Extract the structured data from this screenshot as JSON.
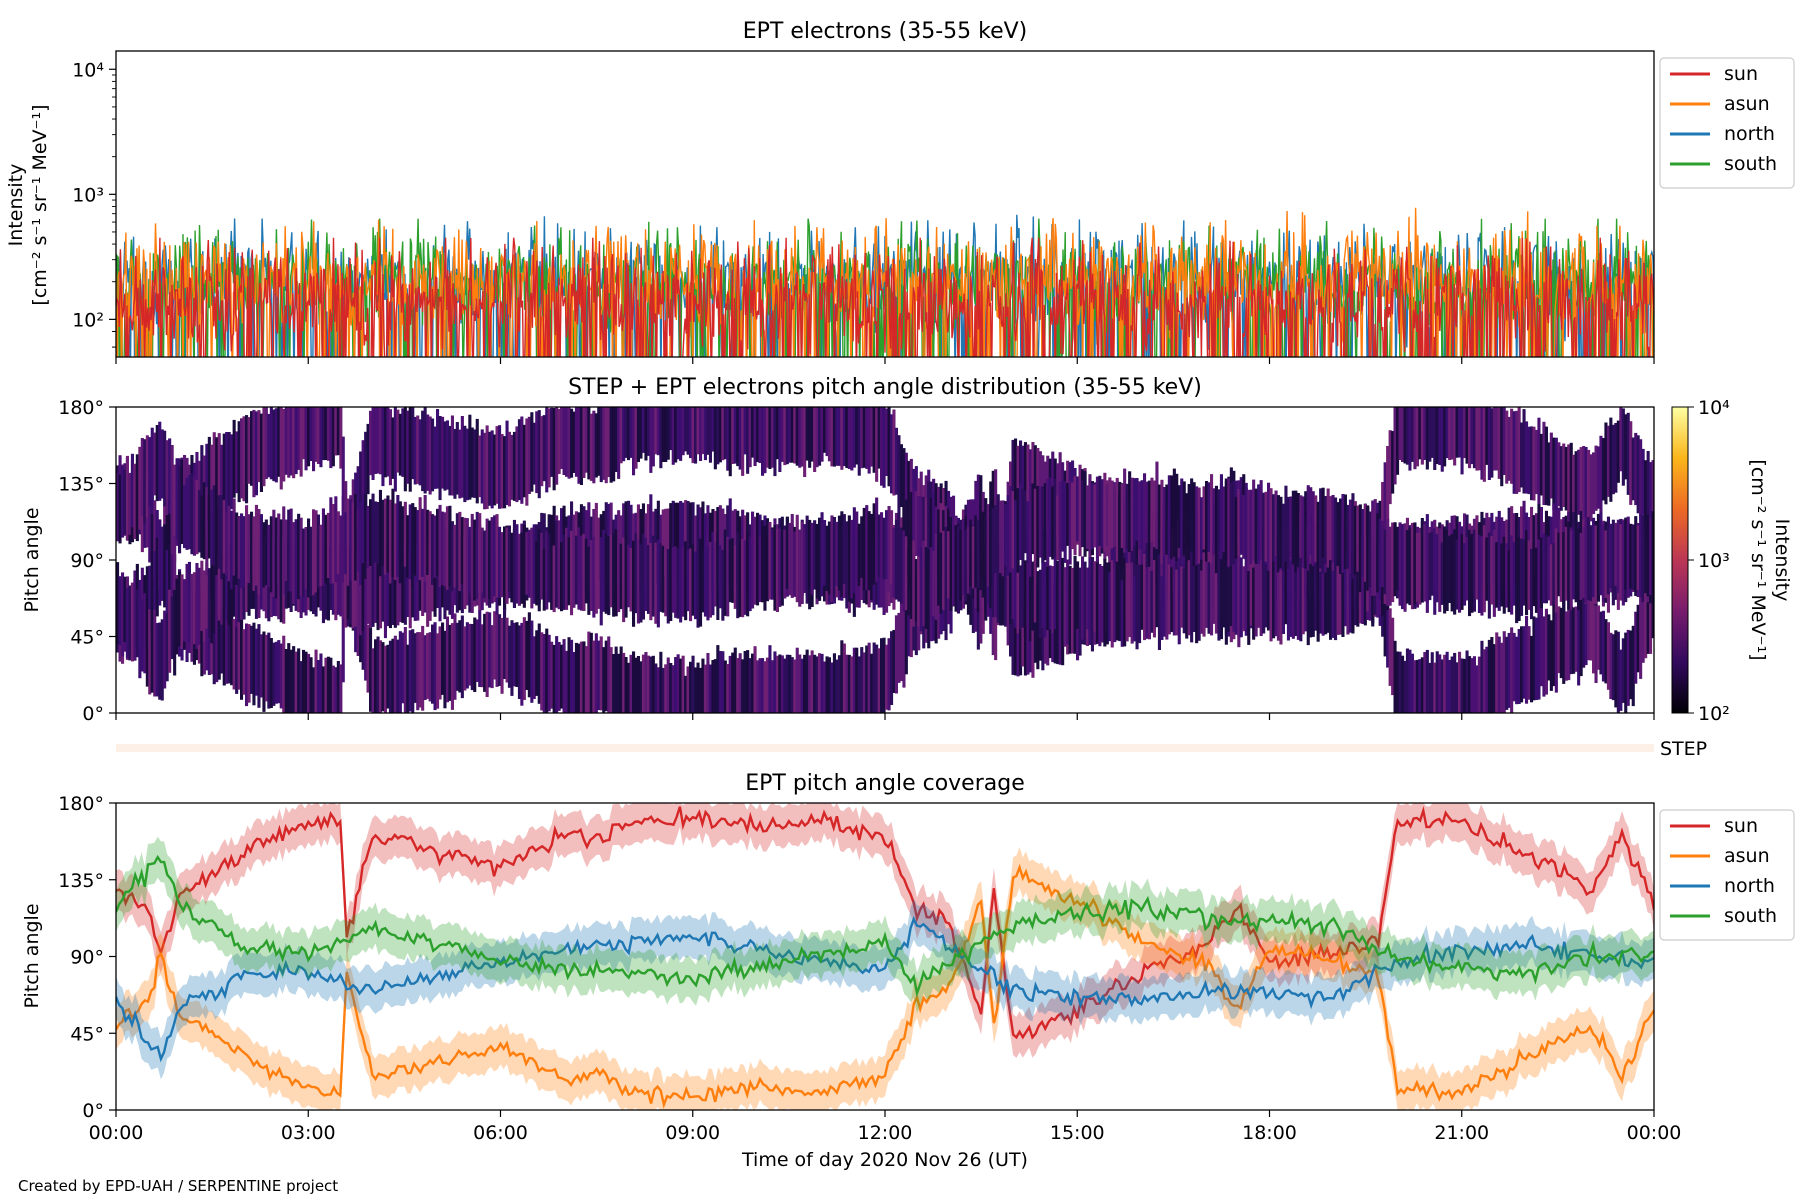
{
  "figure": {
    "credit": "Created by EPD-UAH / SERPENTINE project",
    "xlabel": "Time of day 2020 Nov 26 (UT)",
    "xticks": [
      "00:00",
      "03:00",
      "06:00",
      "09:00",
      "12:00",
      "15:00",
      "18:00",
      "21:00",
      "00:00"
    ]
  },
  "chart_data": [
    {
      "type": "line",
      "title": "EPT electrons (35-55 keV)",
      "ylabel": [
        "Intensity",
        "[cm⁻² s⁻¹ sr⁻¹ MeV⁻¹]"
      ],
      "yscale": "log",
      "ylim": [
        50,
        14000
      ],
      "yticks": [
        {
          "value": 100,
          "label": "10²"
        },
        {
          "value": 1000,
          "label": "10³"
        },
        {
          "value": 10000,
          "label": "10⁴"
        }
      ],
      "xlim_hours": [
        0,
        24
      ],
      "legend": "right-outside",
      "series": [
        {
          "name": "sun",
          "color": "#d62728",
          "typical": 150,
          "spread": 0.9,
          "peak": 450
        },
        {
          "name": "asun",
          "color": "#ff7f0e",
          "typical": 220,
          "spread": 0.8,
          "peak": 780
        },
        {
          "name": "north",
          "color": "#1f77b4",
          "typical": 220,
          "spread": 0.8,
          "peak": 720
        },
        {
          "name": "south",
          "color": "#2ca02c",
          "typical": 210,
          "spread": 0.8,
          "peak": 640
        }
      ]
    },
    {
      "type": "heatmap",
      "title": "STEP + EPT electrons pitch angle distribution (35-55 keV)",
      "ylabel": "Pitch angle",
      "ylim": [
        0,
        180
      ],
      "yticks": [
        "0°",
        "45°",
        "90°",
        "135°",
        "180°"
      ],
      "xlim_hours": [
        0,
        24
      ],
      "colorbar": {
        "label": [
          "Intensity",
          "[cm⁻² s⁻¹ sr⁻¹ MeV⁻¹]"
        ],
        "range": [
          100,
          10000
        ],
        "scale": "log",
        "ticks": [
          "10²",
          "10³",
          "10⁴"
        ],
        "colors": [
          "#000004",
          "#320a5e",
          "#781c6d",
          "#bc3754",
          "#ed6925",
          "#fbb61a",
          "#fcffa4"
        ]
      },
      "typical_intensity_range": [
        150,
        400
      ],
      "gap_bands": "white gaps between the four sensor coverage bands (see EPT pitch angle coverage)"
    },
    {
      "type": "bar",
      "label": "STEP",
      "color": "#fdf0e6",
      "xlim_hours": [
        0,
        24
      ]
    },
    {
      "type": "area",
      "title": "EPT pitch angle coverage",
      "ylabel": "Pitch angle",
      "ylim": [
        0,
        180
      ],
      "yticks": [
        "0°",
        "45°",
        "90°",
        "135°",
        "180°"
      ],
      "xlim_hours": [
        0,
        24
      ],
      "legend": "right-outside",
      "band_halfwidth_deg": 12,
      "series": [
        {
          "name": "sun",
          "color": "#d62728",
          "hours": [
            0,
            0.5,
            0.7,
            1,
            2,
            3,
            3.5,
            3.6,
            4,
            5,
            6,
            7,
            7.5,
            8,
            9,
            10,
            11,
            12,
            12.5,
            13,
            13.5,
            13.7,
            14,
            15,
            16,
            17,
            17.5,
            18,
            19,
            19.7,
            20,
            21,
            22,
            23,
            23.5,
            24
          ],
          "deg": [
            130,
            118,
            90,
            125,
            150,
            168,
            170,
            98,
            162,
            152,
            142,
            162,
            158,
            168,
            172,
            166,
            170,
            160,
            118,
            110,
            58,
            130,
            42,
            58,
            80,
            96,
            120,
            85,
            92,
            100,
            168,
            170,
            150,
            130,
            160,
            120
          ]
        },
        {
          "name": "asun",
          "color": "#ff7f0e",
          "hours": [
            0,
            0.5,
            0.7,
            1,
            2,
            3,
            3.5,
            3.6,
            4,
            5,
            6,
            7,
            7.5,
            8,
            9,
            10,
            11,
            12,
            12.5,
            13,
            13.5,
            13.7,
            14,
            15,
            16,
            17,
            17.5,
            18,
            19,
            19.7,
            20,
            21,
            22,
            23,
            23.5,
            24
          ],
          "deg": [
            50,
            62,
            90,
            55,
            32,
            12,
            8,
            82,
            18,
            28,
            38,
            18,
            22,
            12,
            8,
            14,
            10,
            20,
            62,
            70,
            122,
            50,
            138,
            122,
            100,
            85,
            60,
            95,
            88,
            80,
            12,
            10,
            30,
            50,
            20,
            60
          ]
        },
        {
          "name": "north",
          "color": "#1f77b4",
          "hours": [
            0,
            0.7,
            1,
            2,
            3,
            4,
            5,
            6,
            7,
            8,
            9,
            10,
            11,
            12,
            12.5,
            13,
            14,
            15,
            16,
            17,
            18,
            19,
            20,
            21,
            22,
            23,
            24
          ],
          "deg": [
            65,
            30,
            60,
            78,
            82,
            70,
            80,
            85,
            96,
            98,
            102,
            94,
            88,
            82,
            110,
            96,
            70,
            66,
            64,
            70,
            68,
            66,
            88,
            92,
            98,
            90,
            88
          ]
        },
        {
          "name": "south",
          "color": "#2ca02c",
          "hours": [
            0,
            0.7,
            1,
            2,
            3,
            4,
            5,
            6,
            7,
            8,
            9,
            10,
            11,
            12,
            12.5,
            13,
            14,
            15,
            16,
            17,
            18,
            19,
            20,
            21,
            22,
            23,
            24
          ],
          "deg": [
            118,
            150,
            120,
            96,
            92,
            106,
            98,
            88,
            82,
            80,
            76,
            84,
            92,
            98,
            72,
            86,
            108,
            116,
            118,
            112,
            110,
            108,
            88,
            84,
            80,
            90,
            92
          ]
        }
      ]
    }
  ]
}
